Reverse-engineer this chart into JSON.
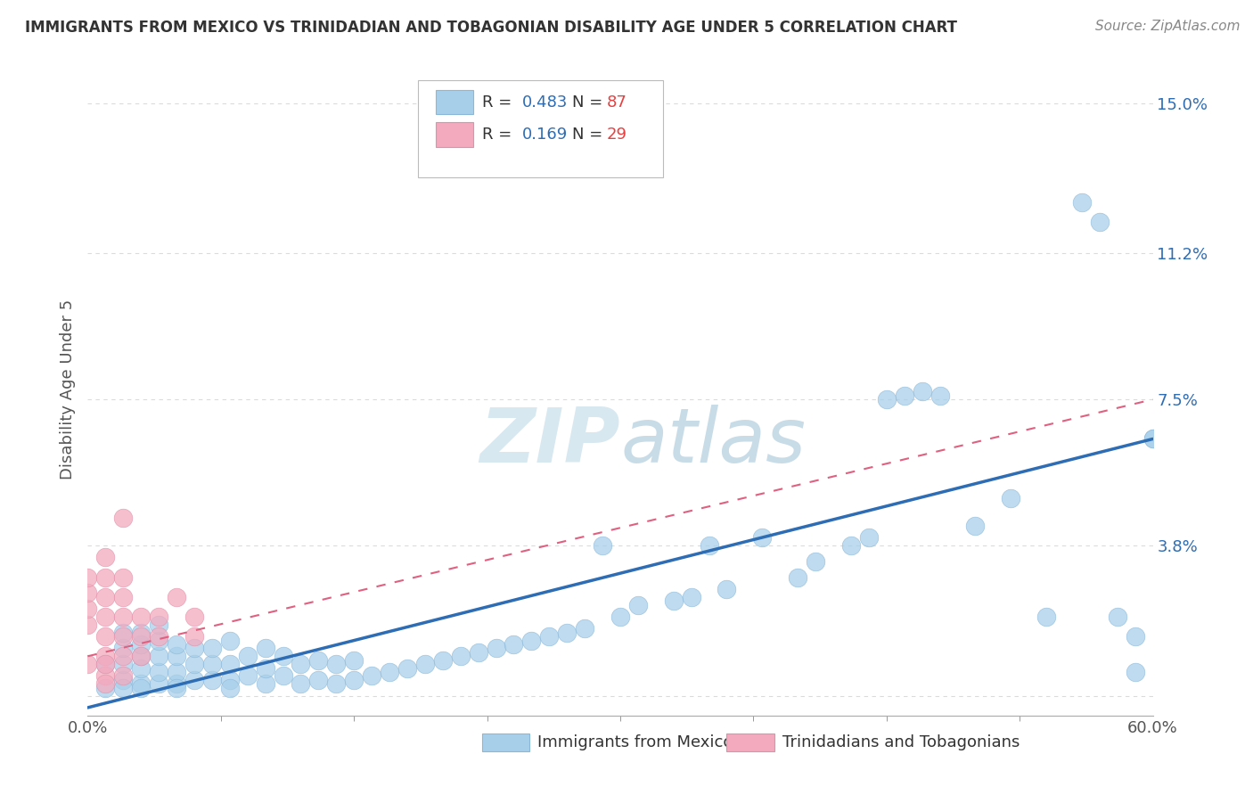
{
  "title": "IMMIGRANTS FROM MEXICO VS TRINIDADIAN AND TOBAGONIAN DISABILITY AGE UNDER 5 CORRELATION CHART",
  "source": "Source: ZipAtlas.com",
  "ylabel_ticks": [
    0.0,
    0.038,
    0.075,
    0.112,
    0.15
  ],
  "ylabel_labels": [
    "",
    "3.8%",
    "7.5%",
    "11.2%",
    "15.0%"
  ],
  "xmin": 0.0,
  "xmax": 0.6,
  "ymin": -0.005,
  "ymax": 0.16,
  "ylabel": "Disability Age Under 5",
  "blue_R": 0.483,
  "blue_N": 87,
  "pink_R": 0.169,
  "pink_N": 29,
  "blue_color": "#A8CFEA",
  "pink_color": "#F4AABE",
  "blue_marker_edge": "#8BB8D8",
  "pink_marker_edge": "#E090A8",
  "blue_line_color": "#2E6DB4",
  "pink_line_color": "#E06080",
  "grid_color": "#CCCCCC",
  "title_color": "#404040",
  "legend_R_color": "#2E6DB4",
  "legend_N_color": "#E84040",
  "watermark_color": "#D8E8F0",
  "blue_scatter_x": [
    0.01,
    0.01,
    0.02,
    0.02,
    0.02,
    0.02,
    0.02,
    0.03,
    0.03,
    0.03,
    0.03,
    0.03,
    0.03,
    0.04,
    0.04,
    0.04,
    0.04,
    0.04,
    0.05,
    0.05,
    0.05,
    0.05,
    0.05,
    0.06,
    0.06,
    0.06,
    0.07,
    0.07,
    0.07,
    0.08,
    0.08,
    0.08,
    0.08,
    0.09,
    0.09,
    0.1,
    0.1,
    0.1,
    0.11,
    0.11,
    0.12,
    0.12,
    0.13,
    0.13,
    0.14,
    0.14,
    0.15,
    0.15,
    0.16,
    0.17,
    0.18,
    0.19,
    0.2,
    0.21,
    0.22,
    0.23,
    0.24,
    0.25,
    0.26,
    0.27,
    0.28,
    0.29,
    0.3,
    0.31,
    0.33,
    0.34,
    0.35,
    0.36,
    0.38,
    0.4,
    0.41,
    0.43,
    0.44,
    0.45,
    0.46,
    0.47,
    0.48,
    0.5,
    0.52,
    0.54,
    0.56,
    0.57,
    0.58,
    0.59,
    0.59,
    0.6,
    0.6
  ],
  "blue_scatter_y": [
    0.002,
    0.008,
    0.004,
    0.008,
    0.012,
    0.016,
    0.002,
    0.003,
    0.007,
    0.01,
    0.013,
    0.016,
    0.002,
    0.003,
    0.006,
    0.01,
    0.014,
    0.018,
    0.003,
    0.006,
    0.01,
    0.013,
    0.002,
    0.004,
    0.008,
    0.012,
    0.004,
    0.008,
    0.012,
    0.004,
    0.008,
    0.014,
    0.002,
    0.005,
    0.01,
    0.003,
    0.007,
    0.012,
    0.005,
    0.01,
    0.003,
    0.008,
    0.004,
    0.009,
    0.003,
    0.008,
    0.004,
    0.009,
    0.005,
    0.006,
    0.007,
    0.008,
    0.009,
    0.01,
    0.011,
    0.012,
    0.013,
    0.014,
    0.015,
    0.016,
    0.017,
    0.038,
    0.02,
    0.023,
    0.024,
    0.025,
    0.038,
    0.027,
    0.04,
    0.03,
    0.034,
    0.038,
    0.04,
    0.075,
    0.076,
    0.077,
    0.076,
    0.043,
    0.05,
    0.02,
    0.125,
    0.12,
    0.02,
    0.015,
    0.006,
    0.065,
    0.065
  ],
  "pink_scatter_x": [
    0.0,
    0.0,
    0.0,
    0.0,
    0.0,
    0.01,
    0.01,
    0.01,
    0.01,
    0.01,
    0.01,
    0.01,
    0.01,
    0.01,
    0.02,
    0.02,
    0.02,
    0.02,
    0.02,
    0.02,
    0.02,
    0.03,
    0.03,
    0.03,
    0.04,
    0.04,
    0.05,
    0.06,
    0.06
  ],
  "pink_scatter_y": [
    0.018,
    0.022,
    0.026,
    0.03,
    0.008,
    0.005,
    0.01,
    0.015,
    0.02,
    0.025,
    0.03,
    0.008,
    0.003,
    0.035,
    0.01,
    0.015,
    0.02,
    0.025,
    0.03,
    0.005,
    0.045,
    0.01,
    0.015,
    0.02,
    0.015,
    0.02,
    0.025,
    0.015,
    0.02
  ],
  "blue_line_x0": 0.0,
  "blue_line_y0": -0.003,
  "blue_line_x1": 0.6,
  "blue_line_y1": 0.065,
  "pink_line_x0": 0.0,
  "pink_line_y0": 0.01,
  "pink_line_x1": 0.6,
  "pink_line_y1": 0.075
}
